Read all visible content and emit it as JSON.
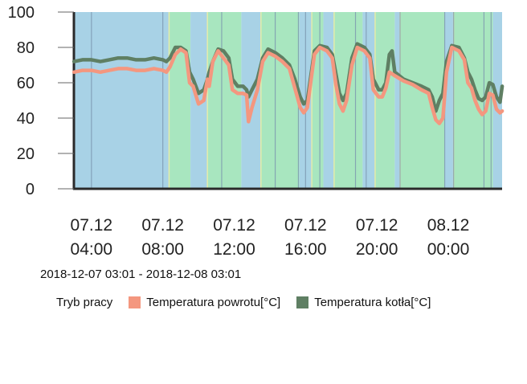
{
  "chart_data": {
    "type": "line",
    "title": "",
    "xlabel": "",
    "ylabel": "",
    "ylim": [
      0,
      100
    ],
    "yticks": [
      0,
      20,
      40,
      60,
      80,
      100
    ],
    "xlim": [
      3.0167,
      27.0167
    ],
    "xticks": [
      {
        "hour": 4,
        "date": "07.12",
        "time": "04:00"
      },
      {
        "hour": 8,
        "date": "07.12",
        "time": "08:00"
      },
      {
        "hour": 12,
        "date": "07.12",
        "time": "12:00"
      },
      {
        "hour": 16,
        "date": "07.12",
        "time": "16:00"
      },
      {
        "hour": 20,
        "date": "07.12",
        "time": "20:00"
      },
      {
        "hour": 24,
        "date": "08.12",
        "time": "00:00"
      }
    ],
    "time_range_label": "2018-12-07 03:01 - 2018-12-08 03:01",
    "mode_legend_label": "Tryb pracy",
    "mode_colors": {
      "standby": "#a8d2e6",
      "heating": "#a8e6bf"
    },
    "mode_bands": [
      {
        "from": 3.0167,
        "to": 8.35,
        "mode": "standby"
      },
      {
        "from": 8.35,
        "to": 9.55,
        "mode": "heating"
      },
      {
        "from": 9.55,
        "to": 10.5,
        "mode": "standby"
      },
      {
        "from": 10.5,
        "to": 12.4,
        "mode": "heating"
      },
      {
        "from": 12.4,
        "to": 13.5,
        "mode": "standby"
      },
      {
        "from": 13.5,
        "to": 15.65,
        "mode": "heating"
      },
      {
        "from": 15.65,
        "to": 16.35,
        "mode": "standby"
      },
      {
        "from": 16.35,
        "to": 17.0,
        "mode": "heating"
      },
      {
        "from": 17.0,
        "to": 17.6,
        "mode": "standby"
      },
      {
        "from": 17.6,
        "to": 19.2,
        "mode": "heating"
      },
      {
        "from": 19.2,
        "to": 19.9,
        "mode": "standby"
      },
      {
        "from": 19.9,
        "to": 21.0,
        "mode": "heating"
      },
      {
        "from": 21.0,
        "to": 21.3,
        "mode": "standby"
      },
      {
        "from": 21.3,
        "to": 23.8,
        "mode": "heating"
      },
      {
        "from": 23.8,
        "to": 24.3,
        "mode": "standby"
      },
      {
        "from": 24.3,
        "to": 26.5,
        "mode": "heating"
      },
      {
        "from": 26.5,
        "to": 27.0167,
        "mode": "standby"
      }
    ],
    "mode_dividers": [
      4.0,
      8.0,
      11.3,
      14.3,
      15.6,
      16.0,
      16.8,
      18.8,
      19.4,
      21.3,
      23.8,
      24.3,
      26.0,
      26.4
    ],
    "series": [
      {
        "name": "Temperatura powrotu[°C]",
        "color": "#f4977f",
        "points": [
          [
            3.02,
            66
          ],
          [
            3.5,
            67
          ],
          [
            4.0,
            67
          ],
          [
            4.5,
            66
          ],
          [
            5.0,
            67
          ],
          [
            5.5,
            68
          ],
          [
            6.0,
            68
          ],
          [
            6.5,
            67
          ],
          [
            7.0,
            67
          ],
          [
            7.5,
            68
          ],
          [
            8.0,
            67
          ],
          [
            8.2,
            66
          ],
          [
            8.4,
            69
          ],
          [
            8.7,
            76
          ],
          [
            9.0,
            79
          ],
          [
            9.3,
            77
          ],
          [
            9.5,
            60
          ],
          [
            9.7,
            58
          ],
          [
            10.0,
            48
          ],
          [
            10.3,
            50
          ],
          [
            10.5,
            62
          ],
          [
            10.6,
            58
          ],
          [
            10.8,
            72
          ],
          [
            11.1,
            78
          ],
          [
            11.4,
            74
          ],
          [
            11.7,
            70
          ],
          [
            11.9,
            56
          ],
          [
            12.2,
            54
          ],
          [
            12.5,
            54
          ],
          [
            12.7,
            53
          ],
          [
            12.8,
            38
          ],
          [
            13.0,
            46
          ],
          [
            13.3,
            56
          ],
          [
            13.6,
            72
          ],
          [
            13.9,
            77
          ],
          [
            14.3,
            75
          ],
          [
            14.7,
            72
          ],
          [
            15.1,
            68
          ],
          [
            15.4,
            57
          ],
          [
            15.7,
            46
          ],
          [
            15.9,
            43
          ],
          [
            16.1,
            46
          ],
          [
            16.5,
            76
          ],
          [
            16.8,
            80
          ],
          [
            17.2,
            78
          ],
          [
            17.5,
            74
          ],
          [
            17.7,
            59
          ],
          [
            17.9,
            48
          ],
          [
            18.1,
            44
          ],
          [
            18.3,
            50
          ],
          [
            18.6,
            70
          ],
          [
            18.9,
            80
          ],
          [
            19.3,
            78
          ],
          [
            19.6,
            74
          ],
          [
            19.8,
            56
          ],
          [
            20.1,
            52
          ],
          [
            20.3,
            52
          ],
          [
            20.5,
            57
          ],
          [
            20.7,
            66
          ],
          [
            21.0,
            64
          ],
          [
            21.5,
            61
          ],
          [
            22.0,
            59
          ],
          [
            22.5,
            56
          ],
          [
            22.9,
            54
          ],
          [
            23.1,
            46
          ],
          [
            23.3,
            39
          ],
          [
            23.5,
            37
          ],
          [
            23.7,
            40
          ],
          [
            23.9,
            66
          ],
          [
            24.2,
            80
          ],
          [
            24.6,
            78
          ],
          [
            24.9,
            73
          ],
          [
            25.1,
            60
          ],
          [
            25.3,
            57
          ],
          [
            25.5,
            50
          ],
          [
            25.7,
            45
          ],
          [
            25.9,
            42
          ],
          [
            26.1,
            44
          ],
          [
            26.3,
            54
          ],
          [
            26.5,
            53
          ],
          [
            26.7,
            45
          ],
          [
            26.9,
            43
          ],
          [
            27.02,
            44
          ]
        ]
      },
      {
        "name": "Temperatura kotła[°C]",
        "color": "#5f7f63",
        "points": [
          [
            3.02,
            72
          ],
          [
            3.5,
            73
          ],
          [
            4.0,
            73
          ],
          [
            4.5,
            72
          ],
          [
            5.0,
            73
          ],
          [
            5.5,
            74
          ],
          [
            6.0,
            74
          ],
          [
            6.5,
            73
          ],
          [
            7.0,
            73
          ],
          [
            7.5,
            74
          ],
          [
            8.0,
            73
          ],
          [
            8.2,
            72
          ],
          [
            8.4,
            74
          ],
          [
            8.7,
            80
          ],
          [
            9.0,
            80
          ],
          [
            9.3,
            78
          ],
          [
            9.5,
            66
          ],
          [
            9.7,
            62
          ],
          [
            10.0,
            54
          ],
          [
            10.3,
            56
          ],
          [
            10.5,
            62
          ],
          [
            10.6,
            66
          ],
          [
            10.8,
            72
          ],
          [
            11.1,
            79
          ],
          [
            11.4,
            78
          ],
          [
            11.7,
            74
          ],
          [
            11.9,
            62
          ],
          [
            12.2,
            58
          ],
          [
            12.5,
            58
          ],
          [
            12.7,
            56
          ],
          [
            12.8,
            52
          ],
          [
            13.0,
            56
          ],
          [
            13.3,
            62
          ],
          [
            13.6,
            74
          ],
          [
            13.9,
            79
          ],
          [
            14.3,
            77
          ],
          [
            14.7,
            74
          ],
          [
            15.1,
            70
          ],
          [
            15.4,
            62
          ],
          [
            15.7,
            52
          ],
          [
            15.9,
            48
          ],
          [
            16.1,
            50
          ],
          [
            16.5,
            78
          ],
          [
            16.8,
            81
          ],
          [
            17.2,
            80
          ],
          [
            17.5,
            76
          ],
          [
            17.7,
            65
          ],
          [
            17.9,
            54
          ],
          [
            18.1,
            50
          ],
          [
            18.3,
            54
          ],
          [
            18.6,
            74
          ],
          [
            18.9,
            82
          ],
          [
            19.3,
            80
          ],
          [
            19.6,
            76
          ],
          [
            19.8,
            62
          ],
          [
            20.1,
            56
          ],
          [
            20.3,
            56
          ],
          [
            20.5,
            60
          ],
          [
            20.7,
            76
          ],
          [
            20.85,
            78
          ],
          [
            21.0,
            66
          ],
          [
            21.5,
            62
          ],
          [
            22.0,
            60
          ],
          [
            22.5,
            58
          ],
          [
            22.9,
            56
          ],
          [
            23.1,
            52
          ],
          [
            23.3,
            44
          ],
          [
            23.5,
            50
          ],
          [
            23.7,
            54
          ],
          [
            23.9,
            72
          ],
          [
            24.2,
            81
          ],
          [
            24.6,
            80
          ],
          [
            24.9,
            74
          ],
          [
            25.1,
            66
          ],
          [
            25.3,
            62
          ],
          [
            25.5,
            56
          ],
          [
            25.7,
            51
          ],
          [
            25.9,
            50
          ],
          [
            26.1,
            52
          ],
          [
            26.3,
            60
          ],
          [
            26.5,
            59
          ],
          [
            26.7,
            52
          ],
          [
            26.9,
            49
          ],
          [
            27.02,
            58
          ]
        ]
      }
    ]
  }
}
